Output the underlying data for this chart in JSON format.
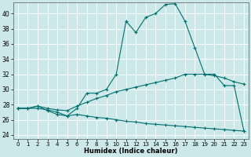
{
  "xlabel": "Humidex (Indice chaleur)",
  "bg_color": "#cce8e8",
  "grid_color": "#ffffff",
  "line_color": "#007070",
  "xlim": [
    -0.5,
    23.5
  ],
  "ylim": [
    23.5,
    41.5
  ],
  "xticks": [
    0,
    1,
    2,
    3,
    4,
    5,
    6,
    7,
    8,
    9,
    10,
    11,
    12,
    13,
    14,
    15,
    16,
    17,
    18,
    19,
    20,
    21,
    22,
    23
  ],
  "yticks": [
    24,
    26,
    28,
    30,
    32,
    34,
    36,
    38,
    40
  ],
  "series1_x": [
    0,
    1,
    2,
    3,
    4,
    5,
    6,
    7,
    8,
    9,
    10,
    11,
    12,
    13,
    14,
    15,
    16,
    17,
    18,
    19,
    20,
    21,
    22,
    23
  ],
  "series1_y": [
    27.5,
    27.5,
    27.8,
    27.2,
    26.7,
    26.5,
    27.5,
    29.5,
    29.5,
    30.0,
    32.0,
    39.0,
    37.5,
    39.5,
    40.0,
    41.2,
    41.3,
    39.0,
    35.5,
    32.0,
    32.0,
    30.5,
    30.5,
    24.5
  ],
  "series2_x": [
    0,
    1,
    2,
    3,
    4,
    5,
    6,
    7,
    8,
    9,
    10,
    11,
    12,
    13,
    14,
    15,
    16,
    17,
    18,
    19,
    20,
    21,
    22,
    23
  ],
  "series2_y": [
    27.5,
    27.5,
    27.8,
    27.5,
    27.3,
    27.2,
    27.8,
    28.3,
    28.8,
    29.2,
    29.7,
    30.0,
    30.3,
    30.6,
    30.9,
    31.2,
    31.5,
    32.0,
    32.0,
    32.0,
    31.8,
    31.5,
    31.0,
    30.7
  ],
  "series3_x": [
    0,
    1,
    2,
    3,
    4,
    5,
    6,
    7,
    8,
    9,
    10,
    11,
    12,
    13,
    14,
    15,
    16,
    17,
    18,
    19,
    20,
    21,
    22,
    23
  ],
  "series3_y": [
    27.5,
    27.5,
    27.5,
    27.3,
    27.0,
    26.5,
    26.7,
    26.5,
    26.3,
    26.2,
    26.0,
    25.8,
    25.7,
    25.5,
    25.4,
    25.3,
    25.2,
    25.1,
    25.0,
    24.9,
    24.8,
    24.7,
    24.6,
    24.5
  ]
}
